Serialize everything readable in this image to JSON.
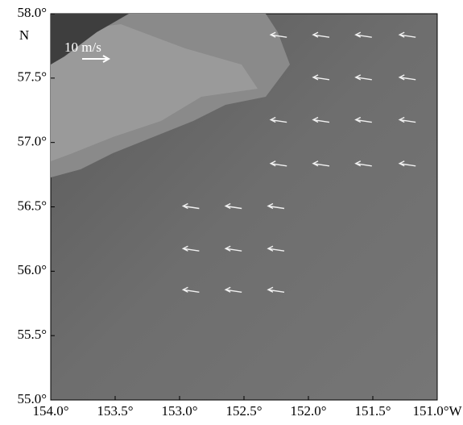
{
  "chart_data": {
    "type": "quiver",
    "xlim": [
      154,
      151
    ],
    "ylim": [
      55,
      58
    ],
    "xticks": [
      {
        "value": 154,
        "label": "154.0°"
      },
      {
        "value": 153.5,
        "label": "153.5°"
      },
      {
        "value": 153,
        "label": "153.0°"
      },
      {
        "value": 152.5,
        "label": "152.5°"
      },
      {
        "value": 152,
        "label": "152.0°"
      },
      {
        "value": 151.5,
        "label": "151.5°"
      },
      {
        "value": 151,
        "label": "151.0°W"
      }
    ],
    "yticks": [
      {
        "value": 55,
        "label": "55.0°"
      },
      {
        "value": 55.5,
        "label": "55.5°"
      },
      {
        "value": 56,
        "label": "56.0°"
      },
      {
        "value": 56.5,
        "label": "56.5°"
      },
      {
        "value": 57,
        "label": "57.0°"
      },
      {
        "value": 57.5,
        "label": "57.5°"
      },
      {
        "value": 58,
        "label": "58.0°"
      }
    ],
    "y_axis_label": "N",
    "scale_label": "10 m/s",
    "color": "#ffffff",
    "x": [
      152.23,
      151.9,
      151.57,
      151.23,
      151.9,
      151.57,
      151.23,
      152.23,
      151.9,
      151.57,
      151.23,
      152.23,
      151.9,
      151.57,
      151.23,
      152.91,
      152.58,
      152.25,
      152.91,
      152.58,
      152.25,
      152.91,
      152.58,
      152.25
    ],
    "y": [
      57.83,
      57.83,
      57.83,
      57.83,
      57.5,
      57.5,
      57.5,
      57.17,
      57.17,
      57.17,
      57.17,
      56.83,
      56.83,
      56.83,
      56.83,
      56.5,
      56.5,
      56.5,
      56.17,
      56.17,
      56.17,
      55.85,
      55.85,
      55.85
    ]
  }
}
